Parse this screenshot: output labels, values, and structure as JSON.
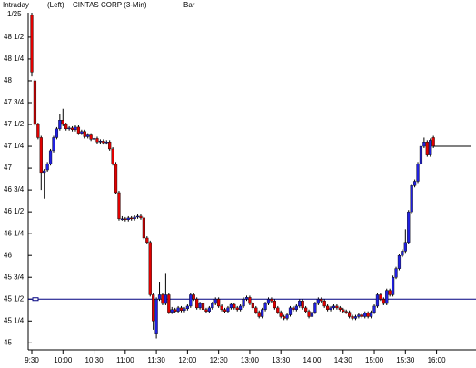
{
  "header": {
    "mode": "Intraday",
    "axis_side": "(Left)",
    "symbol": "CINTAS CORP (3-Min)",
    "style": "Bar",
    "date": "1/25"
  },
  "chart_data": {
    "type": "candlestick",
    "up_color": "#2020e0",
    "down_color": "#e00000",
    "xlim": [
      566.5,
      998
    ],
    "ylim": [
      44.92,
      48.78
    ],
    "xticks": [
      {
        "value": 570,
        "label": "9:30"
      },
      {
        "value": 600,
        "label": "10:00"
      },
      {
        "value": 630,
        "label": "10:30"
      },
      {
        "value": 660,
        "label": "11:00"
      },
      {
        "value": 690,
        "label": "11:30"
      },
      {
        "value": 720,
        "label": "12:00"
      },
      {
        "value": 750,
        "label": "12:30"
      },
      {
        "value": 780,
        "label": "13:00"
      },
      {
        "value": 810,
        "label": "13:30"
      },
      {
        "value": 840,
        "label": "14:00"
      },
      {
        "value": 870,
        "label": "14:30"
      },
      {
        "value": 900,
        "label": "15:00"
      },
      {
        "value": 930,
        "label": "15:30"
      },
      {
        "value": 960,
        "label": "16:00"
      }
    ],
    "yticks": [
      45,
      {
        "value": 45.25,
        "label": "45 1/4"
      },
      {
        "value": 45.5,
        "label": "45 1/2"
      },
      {
        "value": 45.75,
        "label": "45 3/4"
      },
      46,
      {
        "value": 46.25,
        "label": "46 1/4"
      },
      {
        "value": 46.5,
        "label": "46 1/2"
      },
      {
        "value": 46.75,
        "label": "46 3/4"
      },
      47,
      {
        "value": 47.25,
        "label": "47 1/4"
      },
      {
        "value": 47.5,
        "label": "47 1/2"
      },
      {
        "value": 47.75,
        "label": "47 3/4"
      },
      48,
      {
        "value": 48.25,
        "label": "48 1/4"
      },
      {
        "value": 48.5,
        "label": "48 1/2"
      }
    ],
    "reference_line": {
      "value": 45.5,
      "color": "#000080"
    },
    "last_line_end": 993,
    "candles": [
      [
        570,
        48.75,
        48.78,
        48.05,
        48.1
      ],
      [
        573,
        48.0,
        48.02,
        47.48,
        47.5
      ],
      [
        576,
        47.5,
        47.52,
        47.33,
        47.35
      ],
      [
        579,
        47.35,
        47.37,
        46.75,
        46.95
      ],
      [
        582,
        46.95,
        46.99,
        46.65,
        46.97
      ],
      [
        585,
        46.98,
        47.07,
        46.96,
        47.05
      ],
      [
        588,
        47.05,
        47.22,
        47.03,
        47.2
      ],
      [
        591,
        47.2,
        47.37,
        47.18,
        47.35
      ],
      [
        594,
        47.35,
        47.47,
        47.33,
        47.45
      ],
      [
        597,
        47.45,
        47.62,
        47.43,
        47.55
      ],
      [
        600,
        47.55,
        47.68,
        47.48,
        47.5
      ],
      [
        603,
        47.5,
        47.52,
        47.43,
        47.45
      ],
      [
        606,
        47.45,
        47.48,
        47.43,
        47.46
      ],
      [
        609,
        47.46,
        47.48,
        47.42,
        47.44
      ],
      [
        612,
        47.44,
        47.49,
        47.42,
        47.47
      ],
      [
        615,
        47.47,
        47.49,
        47.38,
        47.4
      ],
      [
        618,
        47.4,
        47.44,
        47.38,
        47.42
      ],
      [
        621,
        47.42,
        47.44,
        47.34,
        47.36
      ],
      [
        624,
        47.36,
        47.4,
        47.34,
        47.38
      ],
      [
        627,
        47.38,
        47.4,
        47.31,
        47.33
      ],
      [
        630,
        47.33,
        47.36,
        47.31,
        47.34
      ],
      [
        633,
        47.34,
        47.36,
        47.28,
        47.3
      ],
      [
        636,
        47.3,
        47.33,
        47.28,
        47.31
      ],
      [
        639,
        47.31,
        47.33,
        47.27,
        47.29
      ],
      [
        642,
        47.29,
        47.32,
        47.27,
        47.3
      ],
      [
        645,
        47.3,
        47.32,
        47.2,
        47.22
      ],
      [
        648,
        47.22,
        47.24,
        47.03,
        47.05
      ],
      [
        651,
        47.05,
        47.07,
        46.7,
        46.72
      ],
      [
        654,
        46.72,
        46.74,
        46.4,
        46.42
      ],
      [
        657,
        46.42,
        46.45,
        46.4,
        46.42
      ],
      [
        660,
        46.42,
        46.44,
        46.39,
        46.41
      ],
      [
        663,
        46.41,
        46.45,
        46.39,
        46.43
      ],
      [
        666,
        46.43,
        46.45,
        46.4,
        46.42
      ],
      [
        669,
        46.42,
        46.46,
        46.4,
        46.44
      ],
      [
        672,
        46.44,
        46.47,
        46.42,
        46.45
      ],
      [
        675,
        46.45,
        46.47,
        46.41,
        46.43
      ],
      [
        678,
        46.43,
        46.45,
        46.18,
        46.2
      ],
      [
        681,
        46.2,
        46.22,
        46.13,
        46.15
      ],
      [
        684,
        46.15,
        46.17,
        45.53,
        45.55
      ],
      [
        687,
        45.55,
        45.57,
        45.15,
        45.25
      ],
      [
        690,
        45.1,
        45.52,
        45.05,
        45.5
      ],
      [
        693,
        45.5,
        45.7,
        45.48,
        45.55
      ],
      [
        696,
        45.55,
        45.57,
        45.43,
        45.45
      ],
      [
        699,
        45.45,
        45.8,
        45.43,
        45.55
      ],
      [
        702,
        45.55,
        45.57,
        45.33,
        45.35
      ],
      [
        705,
        45.35,
        45.41,
        45.33,
        45.38
      ],
      [
        708,
        45.38,
        45.4,
        45.34,
        45.36
      ],
      [
        711,
        45.36,
        45.42,
        45.34,
        45.4
      ],
      [
        714,
        45.4,
        45.42,
        45.35,
        45.37
      ],
      [
        717,
        45.37,
        45.41,
        45.35,
        45.39
      ],
      [
        720,
        45.39,
        45.44,
        45.37,
        45.42
      ],
      [
        723,
        45.42,
        45.57,
        45.4,
        45.55
      ],
      [
        726,
        45.55,
        45.57,
        45.48,
        45.5
      ],
      [
        729,
        45.5,
        45.52,
        45.38,
        45.4
      ],
      [
        732,
        45.4,
        45.47,
        45.38,
        45.45
      ],
      [
        735,
        45.45,
        45.47,
        45.36,
        45.38
      ],
      [
        738,
        45.38,
        45.4,
        45.34,
        45.36
      ],
      [
        741,
        45.36,
        45.42,
        45.34,
        45.4
      ],
      [
        744,
        45.4,
        45.47,
        45.38,
        45.45
      ],
      [
        747,
        45.45,
        45.52,
        45.43,
        45.5
      ],
      [
        750,
        45.5,
        45.52,
        45.4,
        45.42
      ],
      [
        753,
        45.42,
        45.44,
        45.36,
        45.38
      ],
      [
        756,
        45.38,
        45.4,
        45.34,
        45.36
      ],
      [
        759,
        45.36,
        45.42,
        45.34,
        45.4
      ],
      [
        762,
        45.4,
        45.46,
        45.38,
        45.44
      ],
      [
        765,
        45.44,
        45.46,
        45.38,
        45.4
      ],
      [
        768,
        45.4,
        45.42,
        45.36,
        45.38
      ],
      [
        771,
        45.38,
        45.44,
        45.36,
        45.42
      ],
      [
        774,
        45.42,
        45.52,
        45.4,
        45.5
      ],
      [
        777,
        45.5,
        45.54,
        45.48,
        45.52
      ],
      [
        780,
        45.52,
        45.54,
        45.43,
        45.45
      ],
      [
        783,
        45.45,
        45.47,
        45.38,
        45.4
      ],
      [
        786,
        45.4,
        45.42,
        45.33,
        45.35
      ],
      [
        789,
        45.35,
        45.37,
        45.28,
        45.3
      ],
      [
        792,
        45.3,
        45.4,
        45.28,
        45.38
      ],
      [
        795,
        45.38,
        45.47,
        45.36,
        45.45
      ],
      [
        798,
        45.45,
        45.52,
        45.43,
        45.5
      ],
      [
        801,
        45.5,
        45.52,
        45.46,
        45.48
      ],
      [
        804,
        45.48,
        45.5,
        45.38,
        45.4
      ],
      [
        807,
        45.4,
        45.42,
        45.33,
        45.35
      ],
      [
        810,
        45.35,
        45.37,
        45.28,
        45.3
      ],
      [
        813,
        45.3,
        45.32,
        45.26,
        45.28
      ],
      [
        816,
        45.28,
        45.34,
        45.26,
        45.32
      ],
      [
        819,
        45.32,
        45.42,
        45.3,
        45.4
      ],
      [
        822,
        45.4,
        45.42,
        45.36,
        45.38
      ],
      [
        825,
        45.38,
        45.44,
        45.36,
        45.42
      ],
      [
        828,
        45.42,
        45.5,
        45.4,
        45.48
      ],
      [
        831,
        45.48,
        45.5,
        45.38,
        45.4
      ],
      [
        834,
        45.4,
        45.42,
        45.34,
        45.36
      ],
      [
        837,
        45.36,
        45.38,
        45.28,
        45.3
      ],
      [
        840,
        45.3,
        45.37,
        45.28,
        45.35
      ],
      [
        843,
        45.35,
        45.47,
        45.33,
        45.45
      ],
      [
        846,
        45.45,
        45.52,
        45.43,
        45.5
      ],
      [
        849,
        45.5,
        45.52,
        45.46,
        45.48
      ],
      [
        852,
        45.48,
        45.5,
        45.4,
        45.42
      ],
      [
        855,
        45.42,
        45.44,
        45.36,
        45.38
      ],
      [
        858,
        45.38,
        45.42,
        45.36,
        45.4
      ],
      [
        861,
        45.4,
        45.44,
        45.38,
        45.42
      ],
      [
        864,
        45.42,
        45.44,
        45.38,
        45.4
      ],
      [
        867,
        45.4,
        45.42,
        45.36,
        45.38
      ],
      [
        870,
        45.38,
        45.4,
        45.34,
        45.36
      ],
      [
        873,
        45.36,
        45.38,
        45.33,
        45.35
      ],
      [
        876,
        45.35,
        45.37,
        45.28,
        45.3
      ],
      [
        879,
        45.3,
        45.32,
        45.26,
        45.28
      ],
      [
        882,
        45.28,
        45.32,
        45.26,
        45.3
      ],
      [
        885,
        45.3,
        45.34,
        45.28,
        45.32
      ],
      [
        888,
        45.32,
        45.34,
        45.28,
        45.3
      ],
      [
        891,
        45.3,
        45.36,
        45.28,
        45.34
      ],
      [
        894,
        45.34,
        45.36,
        45.28,
        45.3
      ],
      [
        897,
        45.3,
        45.37,
        45.28,
        45.35
      ],
      [
        900,
        45.35,
        45.44,
        45.33,
        45.42
      ],
      [
        903,
        45.42,
        45.57,
        45.4,
        45.55
      ],
      [
        906,
        45.55,
        45.57,
        45.48,
        45.5
      ],
      [
        909,
        45.5,
        45.52,
        45.43,
        45.45
      ],
      [
        912,
        45.45,
        45.62,
        45.43,
        45.6
      ],
      [
        915,
        45.6,
        45.62,
        45.53,
        45.55
      ],
      [
        918,
        45.55,
        45.77,
        45.53,
        45.75
      ],
      [
        921,
        45.75,
        45.87,
        45.73,
        45.85
      ],
      [
        924,
        45.85,
        46.02,
        45.83,
        46.0
      ],
      [
        927,
        46.0,
        46.07,
        45.98,
        46.05
      ],
      [
        930,
        46.05,
        46.3,
        46.03,
        46.15
      ],
      [
        933,
        46.15,
        46.52,
        46.13,
        46.5
      ],
      [
        936,
        46.5,
        46.82,
        46.48,
        46.8
      ],
      [
        939,
        46.8,
        46.87,
        46.78,
        46.85
      ],
      [
        942,
        46.85,
        47.07,
        46.83,
        47.05
      ],
      [
        945,
        47.05,
        47.27,
        47.03,
        47.25
      ],
      [
        948,
        47.25,
        47.35,
        47.23,
        47.3
      ],
      [
        951,
        47.3,
        47.32,
        47.13,
        47.15
      ],
      [
        954,
        47.15,
        47.34,
        47.13,
        47.32
      ],
      [
        957,
        47.35,
        47.37,
        47.23,
        47.25
      ]
    ]
  }
}
